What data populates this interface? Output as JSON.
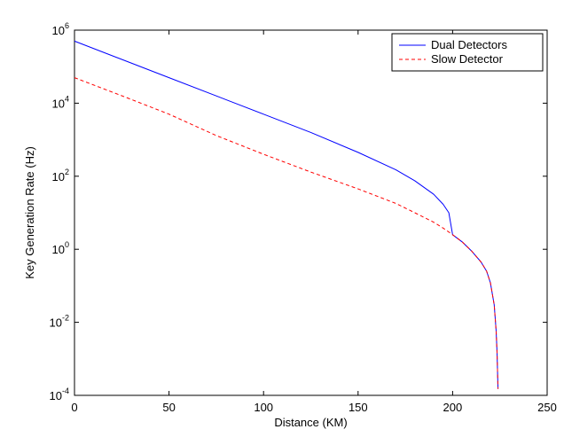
{
  "chart_data": {
    "type": "line",
    "title": "",
    "xlabel": "Distance (KM)",
    "ylabel": "Key Generation Rate (Hz)",
    "xlim": [
      0,
      250
    ],
    "ylim": [
      0.0001,
      1000000
    ],
    "y_scale": "log",
    "grid": false,
    "legend_position": "top-right",
    "x_ticks": [
      0,
      50,
      100,
      150,
      200,
      250
    ],
    "x_tick_labels": [
      "0",
      "50",
      "100",
      "150",
      "200",
      "250"
    ],
    "y_ticks": [
      0.0001,
      0.01,
      1,
      100,
      10000,
      1000000
    ],
    "y_tick_labels": [
      {
        "base": "10",
        "exp": "-4"
      },
      {
        "base": "10",
        "exp": "-2"
      },
      {
        "base": "10",
        "exp": "0"
      },
      {
        "base": "10",
        "exp": "2"
      },
      {
        "base": "10",
        "exp": "4"
      },
      {
        "base": "10",
        "exp": "6"
      }
    ],
    "series": [
      {
        "name": "Dual Detectors",
        "color": "#0000ff",
        "line_style": "solid",
        "x": [
          0,
          25,
          50,
          75,
          100,
          125,
          150,
          170,
          180,
          190,
          195,
          198,
          200,
          205,
          210,
          215,
          218,
          220,
          222,
          223,
          223.5,
          224
        ],
        "y": [
          500000,
          158000,
          50000,
          15800,
          5000,
          1580,
          450,
          150,
          75,
          32,
          17,
          10,
          2.5,
          1.6,
          0.9,
          0.45,
          0.25,
          0.12,
          0.03,
          0.006,
          0.0015,
          0.00015
        ]
      },
      {
        "name": "Slow Detector",
        "color": "#ff0000",
        "line_style": "dashed",
        "x": [
          0,
          25,
          50,
          75,
          100,
          125,
          150,
          170,
          180,
          190,
          195,
          200,
          205,
          210,
          215,
          218,
          220,
          222,
          223,
          223.5,
          224
        ],
        "y": [
          50000,
          16000,
          5000,
          1300,
          400,
          130,
          45,
          18,
          10,
          5.5,
          3.8,
          2.5,
          1.6,
          0.9,
          0.45,
          0.25,
          0.12,
          0.03,
          0.006,
          0.0015,
          0.00015
        ]
      }
    ]
  }
}
